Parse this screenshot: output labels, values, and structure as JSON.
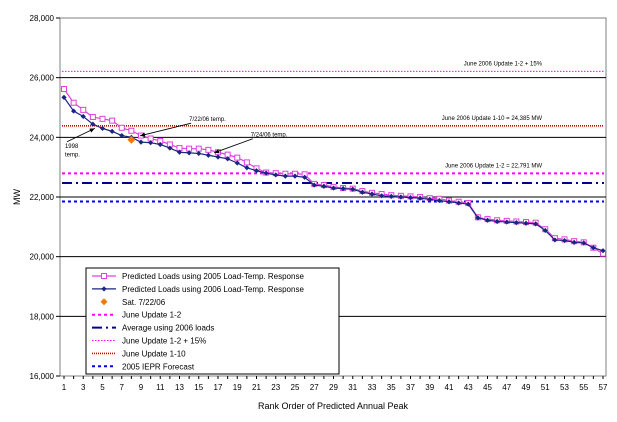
{
  "chart_data": {
    "type": "line",
    "xlabel": "Rank Order of Predicted Annual Peak",
    "ylabel": "MW",
    "xlim": [
      1,
      57
    ],
    "ylim": [
      16000,
      28000
    ],
    "yticks": [
      16000,
      18000,
      20000,
      22000,
      24000,
      26000,
      28000
    ],
    "ytick_labels": [
      "16,000",
      "18,000",
      "20,000",
      "22,000",
      "24,000",
      "26,000",
      "28,000"
    ],
    "xticks": [
      1,
      3,
      5,
      7,
      9,
      11,
      13,
      15,
      17,
      19,
      21,
      23,
      25,
      27,
      29,
      31,
      33,
      35,
      37,
      39,
      41,
      43,
      45,
      47,
      49,
      51,
      53,
      55,
      57
    ],
    "x": [
      1,
      2,
      3,
      4,
      5,
      6,
      7,
      8,
      9,
      10,
      11,
      12,
      13,
      14,
      15,
      16,
      17,
      18,
      19,
      20,
      21,
      22,
      23,
      24,
      25,
      26,
      27,
      28,
      29,
      30,
      31,
      32,
      33,
      34,
      35,
      36,
      37,
      38,
      39,
      40,
      41,
      42,
      43,
      44,
      45,
      46,
      47,
      48,
      49,
      50,
      51,
      52,
      53,
      54,
      55,
      56,
      57
    ],
    "series": [
      {
        "name": "Predicted Loads using 2005 Load-Temp. Response",
        "color": "#e040e0",
        "marker": "square-open",
        "values": [
          25620,
          25160,
          24920,
          24680,
          24620,
          24560,
          24320,
          24220,
          24060,
          23960,
          23880,
          23760,
          23640,
          23620,
          23620,
          23580,
          23500,
          23420,
          23320,
          23160,
          22960,
          22820,
          22800,
          22780,
          22780,
          22760,
          22440,
          22400,
          22340,
          22300,
          22280,
          22200,
          22140,
          22100,
          22060,
          22040,
          22020,
          22000,
          21960,
          21940,
          21880,
          21840,
          21800,
          21320,
          21260,
          21220,
          21200,
          21180,
          21160,
          21140,
          20920,
          20620,
          20580,
          20520,
          20480,
          20300,
          20100
        ]
      },
      {
        "name": "Predicted Loads using 2006 Load-Temp. Response",
        "color": "#1a2580",
        "marker": "diamond-filled",
        "values": [
          25340,
          24880,
          24700,
          24440,
          24300,
          24200,
          24060,
          24000,
          23840,
          23820,
          23760,
          23640,
          23500,
          23480,
          23460,
          23400,
          23340,
          23280,
          23140,
          22980,
          22880,
          22800,
          22740,
          22700,
          22700,
          22660,
          22400,
          22360,
          22300,
          22280,
          22260,
          22160,
          22100,
          22040,
          22020,
          22000,
          21980,
          21960,
          21920,
          21880,
          21840,
          21800,
          21760,
          21300,
          21220,
          21180,
          21160,
          21140,
          21120,
          21100,
          20880,
          20560,
          20540,
          20480,
          20460,
          20300,
          20200
        ]
      },
      {
        "name": "Sat. 7/22/06",
        "color": "#f07a00",
        "marker": "diamond-large",
        "points": [
          {
            "x": 8,
            "y": 23920
          }
        ]
      }
    ],
    "reference_lines": [
      {
        "name": "June Update 1-2",
        "value": 22791,
        "color": "#ff00ff",
        "dash": "3,3",
        "width": 2,
        "label": "June 2006 Update 1-2 = 22,791 MW"
      },
      {
        "name": "Average using 2006 loads",
        "value": 22470,
        "color": "#00008b",
        "dash": "10,4,2,4",
        "width": 2,
        "label": ""
      },
      {
        "name": "June Update 1-2 + 15%",
        "value": 26210,
        "color": "#ff00ff",
        "dash": "1.5,1.5",
        "width": 1,
        "label": "June 2006 Update 1-2 + 15%"
      },
      {
        "name": "June Update 1-10",
        "value": 24385,
        "color": "#cc0000",
        "dash": "1,1",
        "width": 1.6,
        "label": "June 2006 Update 1-10 = 24,385 MW"
      },
      {
        "name": "2005 IEPR Forecast",
        "value": 21850,
        "color": "#0000ee",
        "dash": "3,3",
        "width": 2,
        "label": ""
      }
    ],
    "annotations": [
      {
        "text": "7/22/06 temp.",
        "x": 14,
        "y": 24540,
        "arrow_to": {
          "x": 8.9,
          "y": 24050
        }
      },
      {
        "text": "7/24/06 temp.",
        "x": 20.4,
        "y": 24020,
        "arrow_to": {
          "x": 16.6,
          "y": 23480
        }
      },
      {
        "text": "1998",
        "x": 1.1,
        "y": 23650,
        "arrow_to": {
          "x": 4.2,
          "y": 24300
        }
      },
      {
        "text": "temp.",
        "x": 1.1,
        "y": 23350
      }
    ],
    "grid": "horizontal",
    "legend_position": "bottom-left"
  }
}
